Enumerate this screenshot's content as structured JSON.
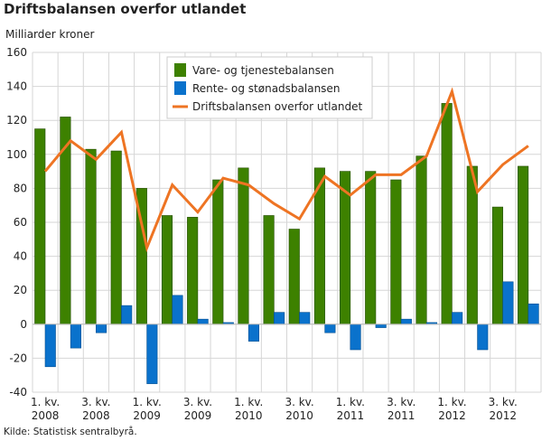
{
  "chart_data": {
    "type": "bar",
    "title": "Driftsbalansen overfor utlandet",
    "ylabel": "Milliarder kroner",
    "source": "Kilde: Statistisk sentralbyrå.",
    "ylim": [
      -40,
      160
    ],
    "yticks": [
      -40,
      -20,
      0,
      20,
      40,
      60,
      80,
      100,
      120,
      140,
      160
    ],
    "grid": true,
    "legend_position": "top-center",
    "categories": [
      "1. kv. 2008",
      "2. kv. 2008",
      "3. kv. 2008",
      "4. kv. 2008",
      "1. kv. 2009",
      "2. kv. 2009",
      "3. kv. 2009",
      "4. kv. 2009",
      "1. kv. 2010",
      "2. kv. 2010",
      "3. kv. 2010",
      "4. kv. 2010",
      "1. kv. 2011",
      "2. kv. 2011",
      "3. kv. 2011",
      "4. kv. 2011",
      "1. kv. 2012",
      "2. kv. 2012",
      "3. kv. 2012",
      "4. kv. 2012"
    ],
    "xtick_labels": [
      {
        "index": 0,
        "line1": "1. kv.",
        "line2": "2008"
      },
      {
        "index": 2,
        "line1": "3. kv.",
        "line2": "2008"
      },
      {
        "index": 4,
        "line1": "1. kv.",
        "line2": "2009"
      },
      {
        "index": 6,
        "line1": "3. kv.",
        "line2": "2009"
      },
      {
        "index": 8,
        "line1": "1. kv.",
        "line2": "2010"
      },
      {
        "index": 10,
        "line1": "3. kv.",
        "line2": "2010"
      },
      {
        "index": 12,
        "line1": "1. kv.",
        "line2": "2011"
      },
      {
        "index": 14,
        "line1": "3. kv.",
        "line2": "2011"
      },
      {
        "index": 16,
        "line1": "1. kv.",
        "line2": "2012"
      },
      {
        "index": 18,
        "line1": "3. kv.",
        "line2": "2012"
      }
    ],
    "series": [
      {
        "name": "Vare- og tjenestebalansen",
        "type": "bar",
        "color": "#3d8100",
        "values": [
          115,
          122,
          103,
          102,
          80,
          64,
          63,
          85,
          92,
          64,
          56,
          92,
          90,
          90,
          85,
          99,
          130,
          93,
          69,
          93
        ]
      },
      {
        "name": "Rente- og stønadsbalansen",
        "type": "bar",
        "color": "#0a72cc",
        "values": [
          -25,
          -14,
          -5,
          11,
          -35,
          17,
          3,
          1,
          -10,
          7,
          7,
          -5,
          -15,
          -2,
          3,
          1,
          7,
          -15,
          25,
          12
        ]
      },
      {
        "name": "Driftsbalansen overfor utlandet",
        "type": "line",
        "color": "#ee7423",
        "values": [
          90,
          108,
          97,
          113,
          45,
          82,
          66,
          86,
          82,
          71,
          62,
          87,
          76,
          88,
          88,
          99,
          137,
          78,
          94,
          105
        ]
      }
    ]
  }
}
